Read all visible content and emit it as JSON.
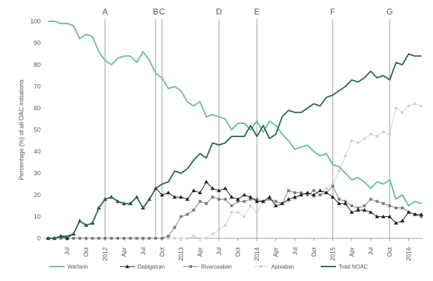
{
  "chart_data": {
    "type": "line",
    "ylabel": "Percentage (%) of all OAC initiations",
    "ylim": [
      0,
      100
    ],
    "y_ticks": [
      0,
      10,
      20,
      30,
      40,
      50,
      60,
      70,
      80,
      90,
      100
    ],
    "x_tick_labels": [
      "Jul",
      "Oct",
      "2012",
      "Apr",
      "Jul",
      "Oct",
      "2013",
      "Apr",
      "Jul",
      "Oct",
      "2014",
      "Apr",
      "Jul",
      "Oct",
      "2015",
      "Apr",
      "Jul",
      "Oct",
      "2016"
    ],
    "x": [
      "2011-04",
      "2011-05",
      "2011-06",
      "2011-07",
      "2011-08",
      "2011-09",
      "2011-10",
      "2011-11",
      "2011-12",
      "2012-01",
      "2012-02",
      "2012-03",
      "2012-04",
      "2012-05",
      "2012-06",
      "2012-07",
      "2012-08",
      "2012-09",
      "2012-10",
      "2012-11",
      "2012-12",
      "2013-01",
      "2013-02",
      "2013-03",
      "2013-04",
      "2013-05",
      "2013-06",
      "2013-07",
      "2013-08",
      "2013-09",
      "2013-10",
      "2013-11",
      "2013-12",
      "2014-01",
      "2014-02",
      "2014-03",
      "2014-04",
      "2014-05",
      "2014-06",
      "2014-07",
      "2014-08",
      "2014-09",
      "2014-10",
      "2014-11",
      "2014-12",
      "2015-01",
      "2015-02",
      "2015-03",
      "2015-04",
      "2015-05",
      "2015-06",
      "2015-07",
      "2015-08",
      "2015-09",
      "2015-10",
      "2015-11",
      "2015-12",
      "2016-01",
      "2016-02",
      "2016-03"
    ],
    "events": [
      {
        "label": "A",
        "x": "2012-01"
      },
      {
        "label": "B",
        "x": "2012-09"
      },
      {
        "label": "C",
        "x": "2012-10"
      },
      {
        "label": "D",
        "x": "2013-07"
      },
      {
        "label": "E",
        "x": "2014-01"
      },
      {
        "label": "F",
        "x": "2015-01"
      },
      {
        "label": "G",
        "x": "2015-10"
      }
    ],
    "series": [
      {
        "name": "Warfarin",
        "color": "#6bbf95",
        "width": 2,
        "marker": "none",
        "values": [
          100,
          100,
          99,
          99,
          98,
          92,
          94,
          93,
          86,
          82,
          80,
          83,
          84,
          84,
          81,
          86,
          82,
          76,
          74,
          69,
          70,
          68,
          63,
          61,
          63,
          56,
          57,
          56,
          55,
          50,
          53,
          53,
          50,
          54,
          49,
          54,
          52,
          48,
          45,
          41,
          42,
          43,
          40,
          38,
          39,
          34,
          33,
          30,
          27,
          28,
          26,
          23,
          26,
          25,
          27,
          18,
          20,
          15,
          17,
          16
        ]
      },
      {
        "name": "Dabigatran",
        "color": "#1e1e1e",
        "width": 1,
        "marker": "triangle",
        "values": [
          0,
          0,
          1,
          0,
          2,
          8,
          6,
          7,
          14,
          18,
          19,
          17,
          16,
          16,
          19,
          14,
          18,
          23,
          20,
          21,
          19,
          19,
          18,
          22,
          21,
          26,
          23,
          22,
          23,
          19,
          18,
          20,
          19,
          17,
          17,
          19,
          15,
          16,
          18,
          19,
          20,
          21,
          20,
          22,
          21,
          19,
          16,
          16,
          12,
          13,
          13,
          12,
          10,
          10,
          10,
          7,
          8,
          12,
          11,
          11
        ]
      },
      {
        "name": "Rivaroxaban",
        "color": "#7a7a7a",
        "width": 1,
        "marker": "square",
        "values": [
          0,
          0,
          0,
          0,
          0,
          0,
          0,
          0,
          0,
          0,
          0,
          0,
          0,
          0,
          0,
          0,
          0,
          0,
          0,
          1,
          5,
          10,
          11,
          13,
          17,
          16,
          19,
          18,
          18,
          15,
          17,
          17,
          18,
          18,
          17,
          18,
          17,
          16,
          22,
          21,
          21,
          20,
          22,
          20,
          21,
          24,
          18,
          17,
          15,
          14,
          15,
          18,
          17,
          16,
          15,
          14,
          14,
          12,
          11,
          10
        ]
      },
      {
        "name": "Apixaban",
        "color": "#cfcfcf",
        "width": 1,
        "marker": "circle",
        "values": [
          0,
          0,
          0,
          0,
          0,
          0,
          0,
          0,
          0,
          0,
          0,
          0,
          0,
          0,
          0,
          0,
          0,
          0,
          0,
          0,
          0,
          0,
          0,
          1,
          0,
          0,
          2,
          4,
          6,
          12,
          12,
          10,
          15,
          12,
          17,
          18,
          17,
          16,
          17,
          18,
          20,
          21,
          19,
          20,
          23,
          25,
          31,
          38,
          45,
          44,
          46,
          48,
          47,
          49,
          48,
          60,
          58,
          61,
          62,
          61
        ]
      },
      {
        "name": "Total NOAC",
        "color": "#2c6e4c",
        "width": 2,
        "marker": "none",
        "values": [
          0,
          0,
          1,
          1,
          2,
          8,
          6,
          7,
          14,
          18,
          19,
          17,
          16,
          16,
          19,
          14,
          18,
          23,
          25,
          26,
          31,
          30,
          32,
          36,
          39,
          37,
          44,
          43,
          44,
          47,
          47,
          47,
          52,
          47,
          52,
          46,
          48,
          56,
          59,
          58,
          58,
          60,
          62,
          61,
          65,
          66,
          68,
          70,
          73,
          72,
          74,
          77,
          74,
          75,
          73,
          81,
          80,
          85,
          84,
          84
        ]
      }
    ],
    "legend": [
      "Warfarin",
      "Dabigatran",
      "Rivaroxaban",
      "Apixaban",
      "Total NOAC"
    ],
    "legend_position": "bottom",
    "grid": false
  }
}
